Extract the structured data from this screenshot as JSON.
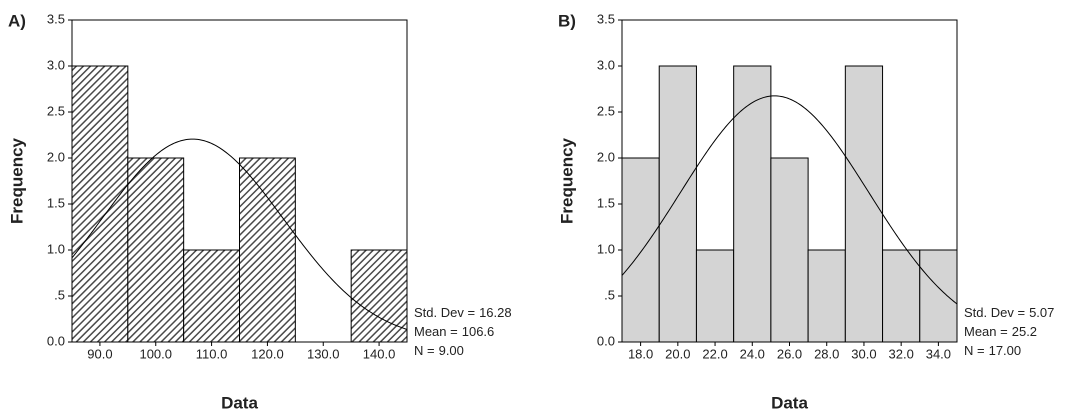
{
  "chart_data": [
    {
      "type": "histogram",
      "panel": "A)",
      "xlabel": "Data",
      "ylabel": "Frequency",
      "bins": [
        85,
        95,
        105,
        115,
        125,
        135,
        145
      ],
      "counts": [
        3,
        2,
        1,
        2,
        0,
        1
      ],
      "color": "#4a4a4a",
      "hatch": true,
      "xlim": [
        85,
        145
      ],
      "xticks": [
        {
          "value": 90,
          "label": "90.0"
        },
        {
          "value": 100,
          "label": "100.0"
        },
        {
          "value": 110,
          "label": "110.0"
        },
        {
          "value": 120,
          "label": "120.0"
        },
        {
          "value": 130,
          "label": "130.0"
        },
        {
          "value": 140,
          "label": "140.0"
        }
      ],
      "ylim": [
        0,
        3.5
      ],
      "yticks": [
        {
          "value": 0,
          "label": "0.0"
        },
        {
          "value": 0.5,
          "label": ".5"
        },
        {
          "value": 1,
          "label": "1.0"
        },
        {
          "value": 1.5,
          "label": "1.5"
        },
        {
          "value": 2,
          "label": "2.0"
        },
        {
          "value": 2.5,
          "label": "2.5"
        },
        {
          "value": 3,
          "label": "3.0"
        },
        {
          "value": 3.5,
          "label": "3.5"
        }
      ],
      "stats": {
        "names": [
          "Std. Dev =",
          "Mean =",
          "N ="
        ],
        "values": [
          16.28,
          106.6,
          9
        ],
        "value_labels": [
          "16.28",
          "106.6",
          "9.00"
        ]
      }
    },
    {
      "type": "histogram",
      "panel": "B)",
      "xlabel": "Data",
      "ylabel": "Frequency",
      "bins": [
        17,
        19,
        21,
        23,
        25,
        27,
        29,
        31,
        33,
        35
      ],
      "counts": [
        2,
        3,
        1,
        3,
        2,
        1,
        3,
        1,
        1
      ],
      "color": "#d4d4d4",
      "hatch": false,
      "xlim": [
        17,
        35
      ],
      "xticks": [
        {
          "value": 18,
          "label": "18.0"
        },
        {
          "value": 20,
          "label": "20.0"
        },
        {
          "value": 22,
          "label": "22.0"
        },
        {
          "value": 24,
          "label": "24.0"
        },
        {
          "value": 26,
          "label": "26.0"
        },
        {
          "value": 28,
          "label": "28.0"
        },
        {
          "value": 30,
          "label": "30.0"
        },
        {
          "value": 32,
          "label": "32.0"
        },
        {
          "value": 34,
          "label": "34.0"
        }
      ],
      "ylim": [
        0,
        3.5
      ],
      "yticks": [
        {
          "value": 0,
          "label": "0.0"
        },
        {
          "value": 0.5,
          "label": ".5"
        },
        {
          "value": 1,
          "label": "1.0"
        },
        {
          "value": 1.5,
          "label": "1.5"
        },
        {
          "value": 2,
          "label": "2.0"
        },
        {
          "value": 2.5,
          "label": "2.5"
        },
        {
          "value": 3,
          "label": "3.0"
        },
        {
          "value": 3.5,
          "label": "3.5"
        }
      ],
      "stats": {
        "names": [
          "Std. Dev =",
          "Mean =",
          "N ="
        ],
        "values": [
          5.07,
          25.2,
          17
        ],
        "value_labels": [
          "5.07",
          "25.2",
          "17.00"
        ]
      }
    }
  ]
}
